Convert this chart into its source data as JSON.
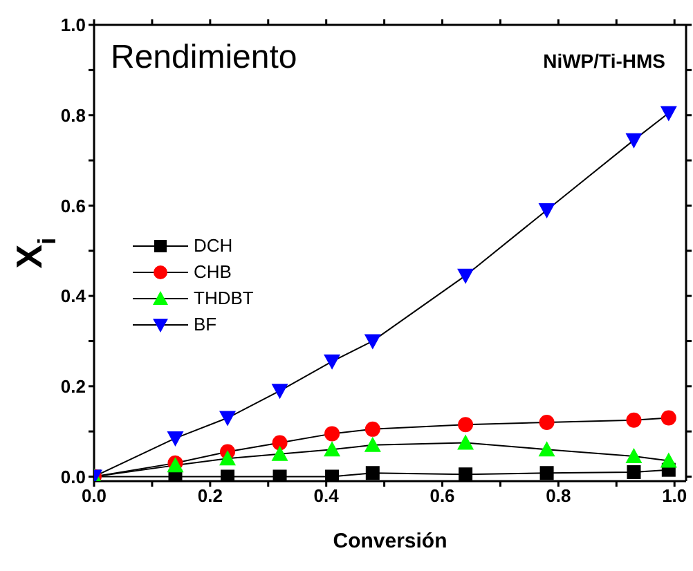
{
  "chart_data": {
    "type": "line",
    "xlabel": "Conversión",
    "ylabel": "X$_{i}$",
    "annotations": [
      "Rendimiento",
      "NiWP/Ti-HMS"
    ],
    "x": [
      0,
      0.14,
      0.23,
      0.32,
      0.41,
      0.48,
      0.64,
      0.78,
      0.93,
      0.99
    ],
    "series": [
      {
        "name": "DCH",
        "color": "#000000",
        "marker": "square",
        "values": [
          0,
          0,
          0,
          0,
          0,
          0.008,
          0.005,
          0.008,
          0.01,
          0.015
        ]
      },
      {
        "name": "CHB",
        "color": "#ff0000",
        "marker": "circle",
        "values": [
          0,
          0.03,
          0.055,
          0.075,
          0.095,
          0.105,
          0.115,
          0.12,
          0.125,
          0.13
        ]
      },
      {
        "name": "THDBT",
        "color": "#00ff00",
        "marker": "triangle",
        "values": [
          0,
          0.025,
          0.04,
          0.05,
          0.06,
          0.07,
          0.075,
          0.06,
          0.045,
          0.035
        ]
      },
      {
        "name": "BF",
        "color": "#0000ff",
        "marker": "triangle-down",
        "values": [
          0,
          0.085,
          0.13,
          0.19,
          0.255,
          0.3,
          0.445,
          0.59,
          0.745,
          0.805
        ]
      }
    ],
    "xlim": [
      0,
      1.02
    ],
    "ylim": [
      -0.01,
      1.0
    ],
    "xticks": [
      {
        "value": 0.0,
        "label": "0.0"
      },
      {
        "value": 0.1,
        "label": null
      },
      {
        "value": 0.2,
        "label": "0.2"
      },
      {
        "value": 0.3,
        "label": null
      },
      {
        "value": 0.4,
        "label": "0.4"
      },
      {
        "value": 0.5,
        "label": null
      },
      {
        "value": 0.6,
        "label": "0.6"
      },
      {
        "value": 0.7,
        "label": null
      },
      {
        "value": 0.8,
        "label": "0.8"
      },
      {
        "value": 0.9,
        "label": null
      },
      {
        "value": 1.0,
        "label": "1.0"
      }
    ],
    "yticks": [
      {
        "value": 0.0,
        "label": "0.0"
      },
      {
        "value": 0.1,
        "label": null
      },
      {
        "value": 0.2,
        "label": "0.2"
      },
      {
        "value": 0.3,
        "label": null
      },
      {
        "value": 0.4,
        "label": "0.4"
      },
      {
        "value": 0.5,
        "label": null
      },
      {
        "value": 0.6,
        "label": "0.6"
      },
      {
        "value": 0.7,
        "label": null
      },
      {
        "value": 0.8,
        "label": "0.8"
      },
      {
        "value": 0.9,
        "label": null
      },
      {
        "value": 1.0,
        "label": "1.0"
      }
    ],
    "grid": false,
    "legend": "left",
    "line_style": "solid"
  }
}
